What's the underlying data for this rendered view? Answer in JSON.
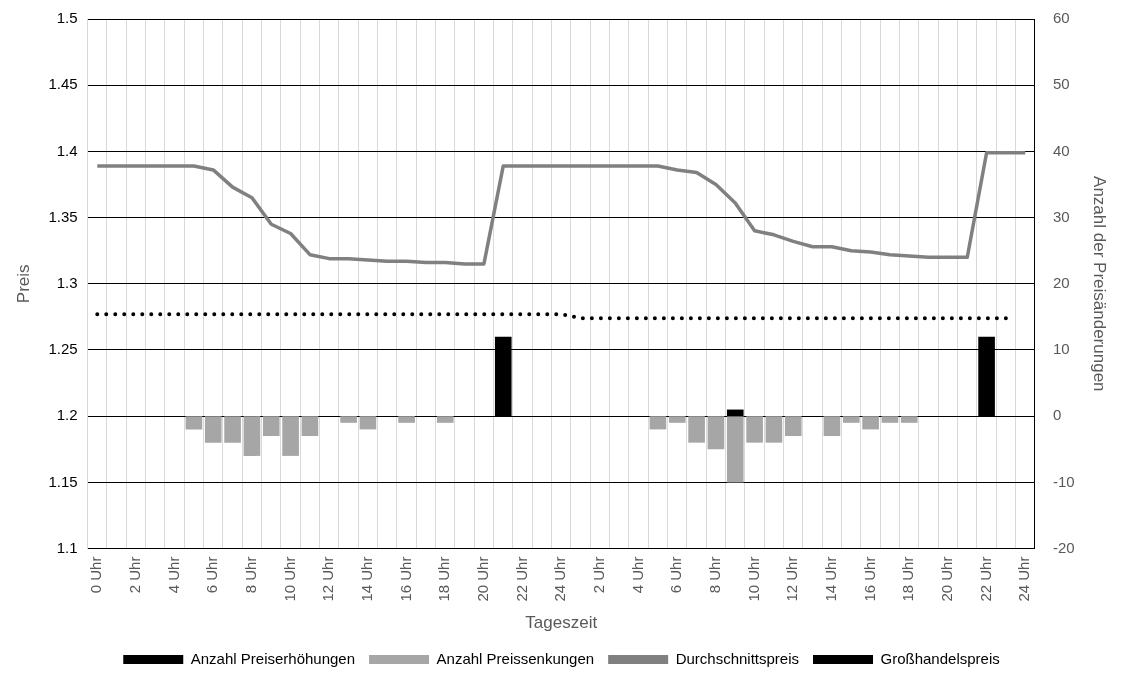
{
  "chart_data": {
    "type": "bar",
    "xlabel": "Tageszeit",
    "ylabel": "Preis",
    "y2label": "Anzahl der Preisänderungen",
    "categories": [
      "0 Uhr",
      null,
      "2 Uhr",
      null,
      "4 Uhr",
      null,
      "6 Uhr",
      null,
      "8 Uhr",
      null,
      "10 Uhr",
      null,
      "12 Uhr",
      null,
      "14 Uhr",
      null,
      "16 Uhr",
      null,
      "18 Uhr",
      null,
      "20 Uhr",
      null,
      "22 Uhr",
      null,
      "24 Uhr",
      null,
      "2 Uhr",
      null,
      "4 Uhr",
      null,
      "6 Uhr",
      null,
      "8 Uhr",
      null,
      "10 Uhr",
      null,
      "12 Uhr",
      null,
      "14 Uhr",
      null,
      "16 Uhr",
      null,
      "18 Uhr",
      null,
      "20 Uhr",
      null,
      "22 Uhr",
      null,
      "24 Uhr"
    ],
    "series": [
      {
        "name": "Anzahl Preiserhöhungen",
        "axis": "y2",
        "color": "#000000",
        "values": [
          null,
          null,
          null,
          null,
          null,
          null,
          null,
          null,
          null,
          null,
          null,
          null,
          null,
          null,
          null,
          null,
          null,
          null,
          null,
          null,
          null,
          12,
          null,
          null,
          null,
          null,
          null,
          null,
          null,
          null,
          null,
          null,
          null,
          1,
          null,
          null,
          null,
          null,
          null,
          null,
          null,
          null,
          null,
          null,
          null,
          null,
          12,
          null,
          null
        ]
      },
      {
        "name": "Anzahl Preissenkungen",
        "axis": "y2",
        "color": "#a6a6a6",
        "values": [
          null,
          null,
          null,
          null,
          null,
          -2,
          -4,
          -4,
          -6,
          -3,
          -6,
          -3,
          null,
          -1,
          -2,
          null,
          -1,
          null,
          -1,
          null,
          null,
          null,
          null,
          null,
          null,
          null,
          null,
          null,
          null,
          -2,
          -1,
          -4,
          -5,
          -10,
          -4,
          -4,
          -3,
          null,
          -3,
          -1,
          -2,
          -1,
          -1,
          null,
          null,
          null,
          null,
          null,
          null
        ]
      },
      {
        "name": "Durchschnittspreis",
        "type": "line",
        "color": "#808080",
        "line_style": "solid",
        "values": [
          1.389,
          1.389,
          1.389,
          1.389,
          1.389,
          1.389,
          1.386,
          1.373,
          1.365,
          1.345,
          1.338,
          1.322,
          1.319,
          1.319,
          1.318,
          1.317,
          1.317,
          1.316,
          1.316,
          1.315,
          1.315,
          1.389,
          1.389,
          1.389,
          1.389,
          1.389,
          1.389,
          1.389,
          1.389,
          1.389,
          1.386,
          1.384,
          1.375,
          1.361,
          1.34,
          1.337,
          1.332,
          1.328,
          1.328,
          1.325,
          1.324,
          1.322,
          1.321,
          1.32,
          1.32,
          1.32,
          1.399,
          1.399,
          1.399
        ]
      },
      {
        "name": "Großhandelspreis",
        "type": "line",
        "color": "#000000",
        "line_style": "dotted",
        "values": [
          1.277,
          1.277,
          1.277,
          1.277,
          1.277,
          1.277,
          1.277,
          1.277,
          1.277,
          1.277,
          1.277,
          1.277,
          1.277,
          1.277,
          1.277,
          1.277,
          1.277,
          1.277,
          1.277,
          1.277,
          1.277,
          1.277,
          1.277,
          1.277,
          1.277,
          1.274,
          1.274,
          1.274,
          1.274,
          1.274,
          1.274,
          1.274,
          1.274,
          1.274,
          1.274,
          1.274,
          1.274,
          1.274,
          1.274,
          1.274,
          1.274,
          1.274,
          1.274,
          1.274,
          1.274,
          1.274,
          1.274,
          1.274,
          null
        ]
      }
    ],
    "ylim": [
      1.1,
      1.5
    ],
    "yticks": [
      1.1,
      1.15,
      1.2,
      1.25,
      1.3,
      1.35,
      1.4,
      1.45,
      1.5
    ],
    "y2lim": [
      -20,
      60
    ],
    "y2ticks": [
      -20,
      -10,
      0,
      10,
      20,
      30,
      40,
      50,
      60
    ],
    "grid": true,
    "legend": "bottom"
  }
}
